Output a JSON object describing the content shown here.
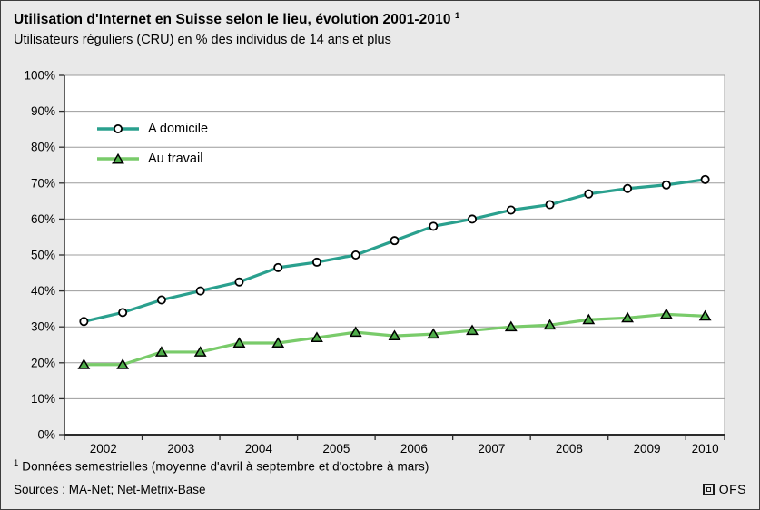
{
  "header": {
    "title": "Utilisation d'Internet en Suisse selon le lieu, évolution 2001-2010",
    "title_note_ref": "1",
    "subtitle": "Utilisateurs réguliers (CRU) en % des individus de 14 ans et plus"
  },
  "chart_data": {
    "type": "line",
    "title": "Utilisation d'Internet en Suisse selon le lieu, évolution 2001-2010",
    "subtitle": "Utilisateurs réguliers (CRU) en % des individus de 14 ans et plus",
    "frequency": "semi-annual",
    "ylim": [
      0,
      100
    ],
    "grid": "horizontal",
    "legend_position": "top-left-inside",
    "y_ticks": [
      {
        "value": 0,
        "label": "0%"
      },
      {
        "value": 10,
        "label": "10%"
      },
      {
        "value": 20,
        "label": "20%"
      },
      {
        "value": 30,
        "label": "30%"
      },
      {
        "value": 40,
        "label": "40%"
      },
      {
        "value": 50,
        "label": "50%"
      },
      {
        "value": 60,
        "label": "60%"
      },
      {
        "value": 70,
        "label": "70%"
      },
      {
        "value": 80,
        "label": "80%"
      },
      {
        "value": 90,
        "label": "90%"
      },
      {
        "value": 100,
        "label": "100%"
      }
    ],
    "x_years": [
      {
        "label": "2002",
        "points": 2
      },
      {
        "label": "2003",
        "points": 2
      },
      {
        "label": "2004",
        "points": 2
      },
      {
        "label": "2005",
        "points": 2
      },
      {
        "label": "2006",
        "points": 2
      },
      {
        "label": "2007",
        "points": 2
      },
      {
        "label": "2008",
        "points": 2
      },
      {
        "label": "2009",
        "points": 2
      },
      {
        "label": "2010",
        "points": 1
      }
    ],
    "colors": {
      "grid": "#9c9c9c",
      "axis": "#2b2b2b",
      "plot_background": "#ffffff"
    },
    "series": [
      {
        "name": "A domicile",
        "marker": "circle",
        "color": "#2aa08e",
        "marker_fill": "#ffffff",
        "values": [
          31.5,
          34,
          37.5,
          40,
          42.5,
          46.5,
          48,
          50,
          54,
          58,
          60,
          62.5,
          64,
          67,
          68.5,
          69.5,
          71
        ]
      },
      {
        "name": "Au travail",
        "marker": "triangle",
        "color": "#79cb6a",
        "marker_fill": "#4fae4a",
        "values": [
          19.5,
          19.5,
          23,
          23,
          25.5,
          25.5,
          27,
          28.5,
          27.5,
          28,
          29,
          30,
          30.5,
          32,
          32.5,
          33.5,
          33
        ]
      }
    ]
  },
  "footer": {
    "footnote_ref": "1",
    "footnote": "Données semestrielles (moyenne d'avril à septembre et d'octobre à mars)",
    "sources": "Sources : MA-Net; Net-Metrix-Base",
    "logo_text": "OFS"
  }
}
